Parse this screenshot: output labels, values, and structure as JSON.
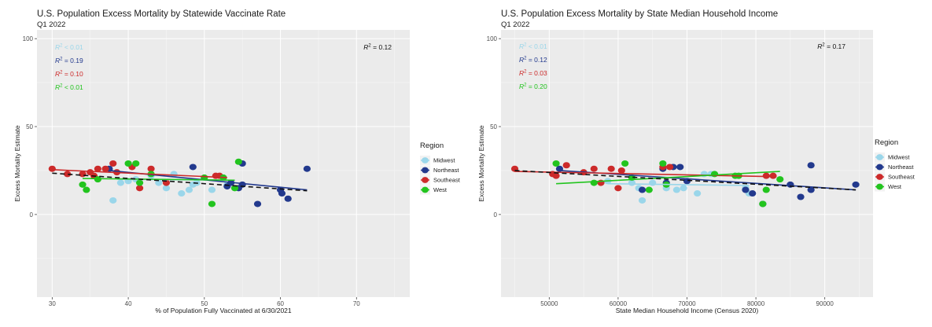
{
  "chart_data": [
    {
      "type": "scatter",
      "title": "U.S. Population Excess Mortality by Statewide Vaccinate Rate",
      "subtitle": "Q1 2022",
      "xlabel": "% of Population Fully Vaccinated at 6/30/2021",
      "ylabel": "Excess Mortality Estimate",
      "xlim": [
        28,
        77
      ],
      "ylim": [
        -47,
        105
      ],
      "xticks": [
        30,
        40,
        50,
        60,
        70
      ],
      "yticks": [
        0,
        50,
        100
      ],
      "overall_r2": "R² = 0.12",
      "overall_line": [
        [
          30,
          23.5
        ],
        [
          63.5,
          13.5
        ]
      ],
      "legend_title": "Region",
      "series": [
        {
          "name": "Midwest",
          "color": "#9ad6ea",
          "r2": "R² < 0.01",
          "line": [
            [
              38.5,
              20
            ],
            [
              53,
              19.5
            ]
          ],
          "points": [
            [
              38,
              8
            ],
            [
              39,
              18
            ],
            [
              40,
              19
            ],
            [
              41,
              20
            ],
            [
              43,
              22
            ],
            [
              44,
              18
            ],
            [
              45,
              15
            ],
            [
              46,
              23
            ],
            [
              47,
              12
            ],
            [
              48,
              14
            ],
            [
              48.5,
              17
            ],
            [
              49,
              18
            ],
            [
              51,
              14
            ],
            [
              53,
              17
            ]
          ]
        },
        {
          "name": "Northeast",
          "color": "#22398d",
          "r2": "R² = 0.19",
          "line": [
            [
              37.5,
              25
            ],
            [
              63.5,
              14
            ]
          ],
          "points": [
            [
              37.5,
              26
            ],
            [
              48.5,
              27
            ],
            [
              53,
              16
            ],
            [
              53.5,
              18
            ],
            [
              54.5,
              15
            ],
            [
              55,
              29
            ],
            [
              55,
              17
            ],
            [
              57,
              6
            ],
            [
              60,
              14
            ],
            [
              60.2,
              12
            ],
            [
              61,
              9
            ],
            [
              63.5,
              26
            ]
          ]
        },
        {
          "name": "Southeast",
          "color": "#cc2a2a",
          "r2": "R² = 0.10",
          "line": [
            [
              30,
              25.5
            ],
            [
              53,
              21
            ]
          ],
          "points": [
            [
              30,
              26
            ],
            [
              32,
              23
            ],
            [
              34,
              23
            ],
            [
              35,
              24
            ],
            [
              35.5,
              22
            ],
            [
              36,
              26
            ],
            [
              37,
              26
            ],
            [
              38,
              29
            ],
            [
              38.5,
              24
            ],
            [
              40.5,
              27
            ],
            [
              41.5,
              15
            ],
            [
              43,
              26
            ],
            [
              45,
              18
            ],
            [
              51.5,
              22
            ],
            [
              52,
              22
            ]
          ]
        },
        {
          "name": "West",
          "color": "#22c41e",
          "r2": "R² < 0.01",
          "line": [
            [
              34,
              20.5
            ],
            [
              54,
              19.5
            ]
          ],
          "points": [
            [
              34,
              17
            ],
            [
              34.5,
              14
            ],
            [
              36,
              20
            ],
            [
              40,
              29
            ],
            [
              41,
              29
            ],
            [
              41.5,
              18
            ],
            [
              43,
              23
            ],
            [
              50,
              21
            ],
            [
              51,
              6
            ],
            [
              52.5,
              21
            ],
            [
              54,
              15
            ],
            [
              54.5,
              30
            ]
          ]
        }
      ]
    },
    {
      "type": "scatter",
      "title": "U.S. Population Excess Mortality by State Median Household Income",
      "subtitle": "Q1 2022",
      "xlabel": "State Median Household Income (Census 2020)",
      "ylabel": "Excess Mortality Estimate",
      "xlim": [
        43000,
        97000
      ],
      "ylim": [
        -47,
        105
      ],
      "xticks": [
        50000,
        60000,
        70000,
        80000,
        90000
      ],
      "yticks": [
        0,
        50,
        100
      ],
      "overall_r2": "R² = 0.17",
      "overall_line": [
        [
          45000,
          25
        ],
        [
          94500,
          14
        ]
      ],
      "legend_title": "Region",
      "series": [
        {
          "name": "Midwest",
          "color": "#9ad6ea",
          "r2": "R² < 0.01",
          "line": [
            [
              58500,
              17.5
            ],
            [
              79000,
              16.5
            ]
          ],
          "points": [
            [
              58500,
              19
            ],
            [
              62000,
              18
            ],
            [
              63000,
              15
            ],
            [
              63500,
              8
            ],
            [
              65000,
              18
            ],
            [
              67000,
              15
            ],
            [
              68500,
              14
            ],
            [
              69500,
              15
            ],
            [
              71500,
              12
            ],
            [
              72500,
              23
            ],
            [
              73500,
              23
            ],
            [
              78500,
              15
            ],
            [
              79000,
              12
            ]
          ]
        },
        {
          "name": "Northeast",
          "color": "#22398d",
          "r2": "R² = 0.12",
          "line": [
            [
              51500,
              25
            ],
            [
              94500,
              14
            ]
          ],
          "points": [
            [
              51500,
              26
            ],
            [
              63500,
              14
            ],
            [
              66500,
              26
            ],
            [
              67000,
              18
            ],
            [
              68000,
              27
            ],
            [
              69000,
              27
            ],
            [
              70000,
              19
            ],
            [
              78500,
              14
            ],
            [
              79500,
              12
            ],
            [
              81000,
              6
            ],
            [
              85000,
              17
            ],
            [
              86500,
              10
            ],
            [
              88000,
              14
            ],
            [
              88000,
              28
            ],
            [
              94500,
              17
            ]
          ]
        },
        {
          "name": "Southeast",
          "color": "#cc2a2a",
          "r2": "R² = 0.03",
          "line": [
            [
              45000,
              24.5
            ],
            [
              83000,
              21.5
            ]
          ],
          "points": [
            [
              45000,
              26
            ],
            [
              50500,
              23
            ],
            [
              51000,
              22
            ],
            [
              52500,
              28
            ],
            [
              55000,
              24
            ],
            [
              56500,
              26
            ],
            [
              57500,
              18
            ],
            [
              59000,
              26
            ],
            [
              60000,
              15
            ],
            [
              60500,
              25
            ],
            [
              66500,
              27
            ],
            [
              67500,
              27
            ],
            [
              81500,
              22
            ],
            [
              82500,
              22
            ]
          ]
        },
        {
          "name": "West",
          "color": "#22c41e",
          "r2": "R² = 0.20",
          "line": [
            [
              51000,
              17.5
            ],
            [
              83500,
              24.5
            ]
          ],
          "points": [
            [
              51000,
              29
            ],
            [
              56500,
              18
            ],
            [
              61000,
              29
            ],
            [
              62000,
              21
            ],
            [
              64500,
              14
            ],
            [
              66500,
              29
            ],
            [
              67000,
              17
            ],
            [
              74000,
              23
            ],
            [
              77000,
              22
            ],
            [
              77500,
              22
            ],
            [
              81000,
              6
            ],
            [
              81500,
              14
            ],
            [
              83500,
              20
            ]
          ]
        }
      ]
    }
  ]
}
